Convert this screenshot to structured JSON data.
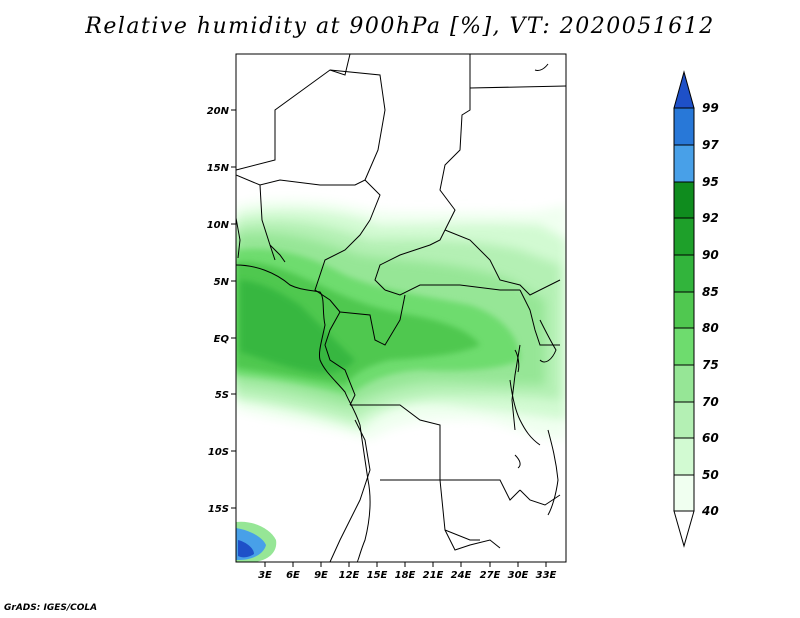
{
  "title": "Relative humidity at 900hPa [%], VT: 2020051612",
  "credit": "GrADS: IGES/COLA",
  "map": {
    "lat_labels": [
      "20N",
      "15N",
      "10N",
      "5N",
      "EQ",
      "5S",
      "10S",
      "15S"
    ],
    "lon_labels": [
      "3E",
      "6E",
      "9E",
      "12E",
      "15E",
      "18E",
      "21E",
      "24E",
      "27E",
      "30E",
      "33E"
    ],
    "lat_range": [
      -20,
      24
    ],
    "lon_range": [
      0,
      35
    ]
  },
  "colorbar": {
    "levels": [
      "99",
      "97",
      "95",
      "92",
      "90",
      "85",
      "80",
      "75",
      "70",
      "60",
      "50",
      "40"
    ],
    "colors": [
      "#1e50c8",
      "#2878d8",
      "#48a0e8",
      "#0f8c1e",
      "#1ea02a",
      "#32b43c",
      "#50c850",
      "#6edc6e",
      "#96e696",
      "#b4f0b4",
      "#d2fad2",
      "#f0fff0"
    ]
  }
}
